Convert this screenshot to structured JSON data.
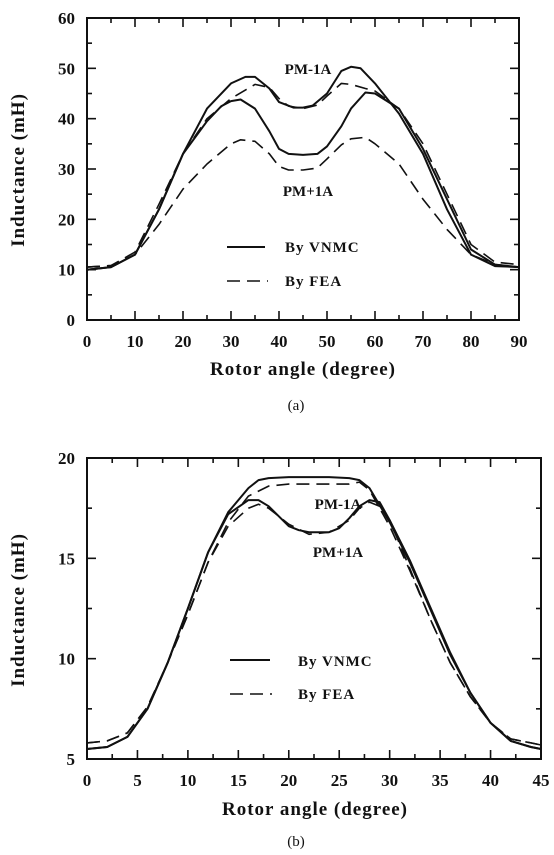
{
  "chart_data": [
    {
      "type": "line",
      "panel_label": "(a)",
      "xlabel": "Rotor angle (degree)",
      "ylabel": "Inductance (mH)",
      "xlim": [
        0,
        90
      ],
      "ylim": [
        0,
        60
      ],
      "xticks": [
        0,
        10,
        20,
        30,
        40,
        50,
        60,
        70,
        80,
        90
      ],
      "yticks": [
        0,
        10,
        20,
        30,
        40,
        50,
        60
      ],
      "legend": {
        "placement": "lower-center",
        "entries": [
          {
            "label": "By VNMC",
            "style": "solid"
          },
          {
            "label": "By FEA",
            "style": "dashed"
          }
        ]
      },
      "annotations": [
        {
          "text": "PM-1A",
          "x": 45.5,
          "y": 50.0
        },
        {
          "text": "PM+1A",
          "x": 45.5,
          "y": 26.0
        }
      ],
      "series": [
        {
          "curve": "PM-1A",
          "method": "VNMC",
          "style": "solid",
          "x": [
            0,
            5,
            10,
            15,
            20,
            25,
            30,
            33,
            35,
            38,
            40,
            43,
            45,
            47,
            50,
            53,
            55,
            57,
            60,
            65,
            70,
            75,
            80,
            85,
            90
          ],
          "y": [
            10,
            10.5,
            13,
            22,
            33,
            42,
            47,
            48.3,
            48.3,
            46,
            43.3,
            42.2,
            42.2,
            42.6,
            45,
            49.5,
            50.3,
            50,
            47,
            41,
            33,
            22,
            13,
            10.7,
            10.5
          ]
        },
        {
          "curve": "PM+1A",
          "method": "VNMC",
          "style": "solid",
          "x": [
            0,
            5,
            10,
            15,
            20,
            25,
            28,
            30,
            32,
            35,
            38,
            40,
            42,
            45,
            48,
            50,
            53,
            55,
            58,
            60,
            65,
            70,
            75,
            80,
            85,
            90
          ],
          "y": [
            10,
            10.5,
            13,
            22,
            33,
            39.5,
            42.5,
            43.5,
            43.8,
            42,
            37.5,
            34,
            33,
            32.8,
            33,
            34.5,
            38.5,
            42,
            45.2,
            45,
            42,
            34,
            24,
            14,
            11,
            10.5
          ]
        },
        {
          "curve": "PM-1A",
          "method": "FEA",
          "style": "dashed",
          "x": [
            0,
            5,
            10,
            15,
            20,
            25,
            30,
            35,
            38,
            40,
            42,
            45,
            48,
            50,
            53,
            55,
            58,
            60,
            65,
            70,
            75,
            80,
            85,
            90
          ],
          "y": [
            10.5,
            10.8,
            13.5,
            23,
            33,
            40,
            44,
            46.8,
            46.2,
            44,
            42.5,
            42,
            42.7,
            44.5,
            47,
            46.8,
            46,
            45.5,
            42,
            35,
            25,
            15,
            11.5,
            11
          ]
        },
        {
          "curve": "PM+1A",
          "method": "FEA",
          "style": "dashed",
          "x": [
            0,
            5,
            10,
            15,
            20,
            25,
            30,
            32,
            35,
            38,
            40,
            42,
            45,
            48,
            50,
            53,
            55,
            58,
            60,
            65,
            70,
            75,
            80,
            85,
            90
          ],
          "y": [
            10.5,
            10.8,
            13,
            19,
            26,
            31,
            35,
            35.8,
            35.5,
            33,
            30.5,
            29.8,
            29.8,
            30.2,
            32,
            34.8,
            36,
            36.3,
            35,
            31,
            24,
            18,
            13,
            11,
            10.5
          ]
        }
      ]
    },
    {
      "type": "line",
      "panel_label": "(b)",
      "xlabel": "Rotor angle (degree)",
      "ylabel": "Inductance (mH)",
      "xlim": [
        0,
        45
      ],
      "ylim": [
        5,
        20
      ],
      "xticks": [
        0,
        5,
        10,
        15,
        20,
        25,
        30,
        35,
        40,
        45
      ],
      "yticks": [
        5,
        10,
        15,
        20
      ],
      "legend": {
        "placement": "lower-center",
        "entries": [
          {
            "label": "By VNMC",
            "style": "solid"
          },
          {
            "label": "By FEA",
            "style": "dashed"
          }
        ]
      },
      "annotations": [
        {
          "text": "PM-1A",
          "x": 23.0,
          "y": 17.7
        },
        {
          "text": "PM+1A",
          "x": 23.0,
          "y": 15.3
        }
      ],
      "series": [
        {
          "curve": "PM-1A",
          "method": "VNMC",
          "style": "solid",
          "x": [
            0,
            2,
            4,
            6,
            8,
            10,
            12,
            14,
            16,
            17,
            18,
            20,
            22,
            24,
            26,
            27,
            28,
            30,
            32,
            34,
            36,
            38,
            40,
            42,
            44,
            45
          ],
          "y": [
            5.5,
            5.6,
            6.1,
            7.5,
            9.8,
            12.5,
            15.3,
            17.3,
            18.5,
            18.9,
            19,
            19.05,
            19.05,
            19.05,
            19,
            18.9,
            18.5,
            16.8,
            14.8,
            12.5,
            10.2,
            8.3,
            6.8,
            5.9,
            5.6,
            5.5
          ]
        },
        {
          "curve": "PM+1A",
          "method": "VNMC",
          "style": "solid",
          "x": [
            0,
            2,
            4,
            6,
            8,
            10,
            12,
            14,
            16,
            17,
            18,
            19,
            20,
            21,
            22,
            24,
            25,
            26,
            27,
            28,
            29,
            30,
            32,
            34,
            36,
            38,
            40,
            42,
            44,
            45
          ],
          "y": [
            5.5,
            5.6,
            6.1,
            7.5,
            9.8,
            12.5,
            15.3,
            17.2,
            17.9,
            17.9,
            17.6,
            17.1,
            16.6,
            16.4,
            16.3,
            16.3,
            16.5,
            17,
            17.6,
            17.9,
            17.8,
            16.9,
            14.9,
            12.6,
            10.3,
            8.3,
            6.8,
            5.9,
            5.6,
            5.5
          ]
        },
        {
          "curve": "PM-1A",
          "method": "FEA",
          "style": "dashed",
          "x": [
            0,
            2,
            4,
            6,
            8,
            10,
            12,
            14,
            16,
            18,
            20,
            22,
            24,
            26,
            27,
            28,
            30,
            32,
            34,
            36,
            38,
            40,
            42,
            44,
            45
          ],
          "y": [
            5.8,
            5.9,
            6.3,
            7.6,
            9.8,
            12.2,
            14.8,
            16.8,
            18.1,
            18.6,
            18.7,
            18.7,
            18.7,
            18.7,
            18.8,
            18.4,
            16.6,
            14.4,
            12,
            9.8,
            8.1,
            6.8,
            6,
            5.8,
            5.7
          ]
        },
        {
          "curve": "PM+1A",
          "method": "FEA",
          "style": "dashed",
          "x": [
            0,
            2,
            4,
            6,
            8,
            10,
            12,
            14,
            16,
            17,
            18,
            20,
            22,
            24,
            26,
            27,
            28,
            29,
            30,
            32,
            34,
            36,
            38,
            40,
            42,
            44,
            45
          ],
          "y": [
            5.8,
            5.9,
            6.3,
            7.6,
            9.8,
            12.2,
            14.8,
            16.6,
            17.5,
            17.7,
            17.5,
            16.7,
            16.2,
            16.3,
            16.9,
            17.5,
            17.8,
            17.6,
            16.9,
            14.5,
            12,
            9.8,
            8.1,
            6.8,
            6,
            5.8,
            5.7
          ]
        }
      ]
    }
  ]
}
